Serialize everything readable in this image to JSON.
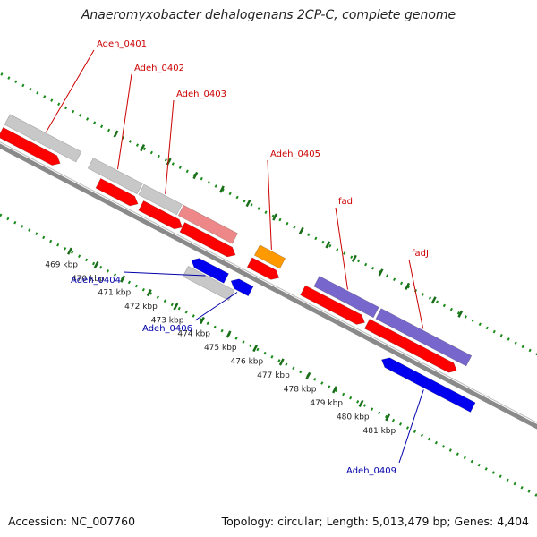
{
  "title": "Anaeromyxobacter dehalogenans 2CP-C, complete genome",
  "footer": {
    "accession": "Accession: NC_007760",
    "summary": "Topology: circular; Length: 5,013,479 bp; Genes: 4,404"
  },
  "colors": {
    "backbone": "#8a8a8a",
    "outer_dots": "#1a8a1a",
    "tick_marks": "#1a6e1a",
    "cds_forward": "#ff0000",
    "cds_reverse": "#0000ee",
    "gene_grey": "#c8c8c8",
    "gene_pink": "#ee8888",
    "gene_orange": "#ff9900",
    "gene_purple": "#7766cc",
    "label_forward": "#cc0000",
    "label_reverse": "#0000aa"
  },
  "ticks": [
    "469 kbp",
    "470 kbp",
    "471 kbp",
    "472 kbp",
    "473 kbp",
    "474 kbp",
    "475 kbp",
    "476 kbp",
    "477 kbp",
    "478 kbp",
    "479 kbp",
    "480 kbp",
    "481 kbp"
  ],
  "genes": [
    {
      "name": "Adeh_0401",
      "strand": "forward"
    },
    {
      "name": "Adeh_0402",
      "strand": "forward"
    },
    {
      "name": "Adeh_0403",
      "strand": "forward"
    },
    {
      "name": "Adeh_0405",
      "strand": "forward"
    },
    {
      "name": "fadI",
      "strand": "forward"
    },
    {
      "name": "fadJ",
      "strand": "forward"
    },
    {
      "name": "Adeh_0404",
      "strand": "reverse"
    },
    {
      "name": "Adeh_0406",
      "strand": "reverse"
    },
    {
      "name": "Adeh_0409",
      "strand": "reverse"
    }
  ]
}
